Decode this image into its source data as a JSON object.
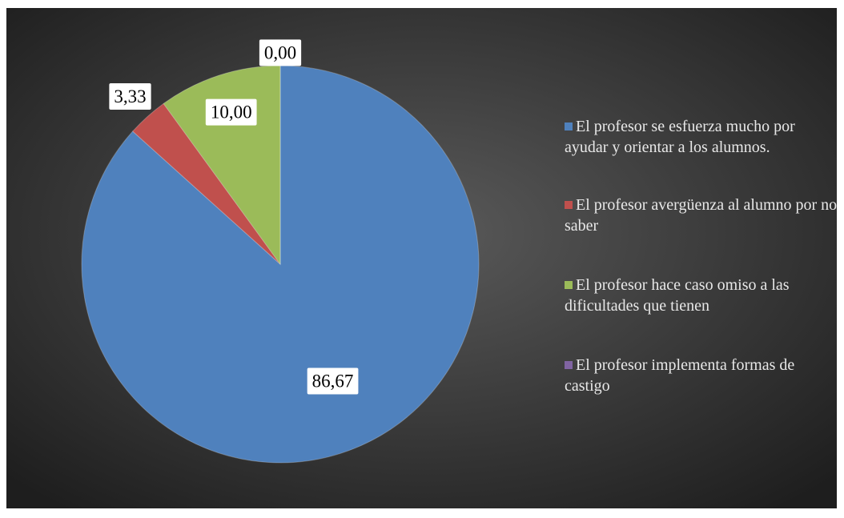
{
  "chart_data": {
    "type": "pie",
    "categories": [
      "El profesor se esfuerza mucho por ayudar y orientar a los alumnos.",
      "El profesor avergüenza al alumno por no saber",
      "El profesor hace caso omiso a las dificultades que tienen",
      "El profesor implementa formas de castigo"
    ],
    "values": [
      86.67,
      3.33,
      10.0,
      0.0
    ],
    "value_labels": [
      "86,67",
      "3,33",
      "10,00",
      "0,00"
    ],
    "colors": [
      "#4f81bd",
      "#c0504d",
      "#9bbb59",
      "#8064a2"
    ],
    "legend": "right"
  }
}
